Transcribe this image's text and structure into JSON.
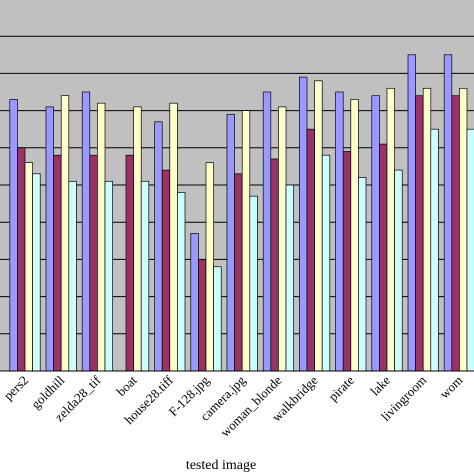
{
  "chart_data": {
    "type": "bar",
    "title": "",
    "xlabel": "tested image",
    "ylabel": "",
    "ylim": [
      0,
      10
    ],
    "grid": true,
    "legend": "none",
    "categories": [
      "pers2",
      "goldhill",
      "zelda28_tif",
      "boat",
      "house28.tiff",
      "F-128.jpg",
      "camera.jpg",
      "woman_blonde",
      "walkbridge",
      "pirate",
      "lake",
      "livingroom",
      "wom"
    ],
    "series": [
      {
        "values": [
          7.3,
          7.1,
          7.5,
          null,
          6.7,
          3.7,
          6.9,
          7.5,
          7.9,
          7.5,
          7.4,
          8.5,
          8.5
        ]
      },
      {
        "values": [
          6.0,
          5.8,
          5.8,
          5.8,
          5.4,
          3.0,
          5.3,
          5.7,
          6.5,
          5.9,
          6.1,
          7.4,
          7.4
        ]
      },
      {
        "values": [
          5.6,
          7.4,
          7.2,
          7.1,
          7.2,
          5.6,
          7.0,
          7.1,
          7.8,
          7.3,
          7.6,
          7.6,
          7.6
        ]
      },
      {
        "values": [
          5.3,
          5.1,
          5.1,
          5.1,
          4.8,
          2.8,
          4.7,
          5.0,
          5.8,
          5.2,
          5.4,
          6.5,
          6.5
        ]
      }
    ],
    "colors": [
      "#9999ff",
      "#993366",
      "#ffffcc",
      "#ccffff"
    ]
  }
}
